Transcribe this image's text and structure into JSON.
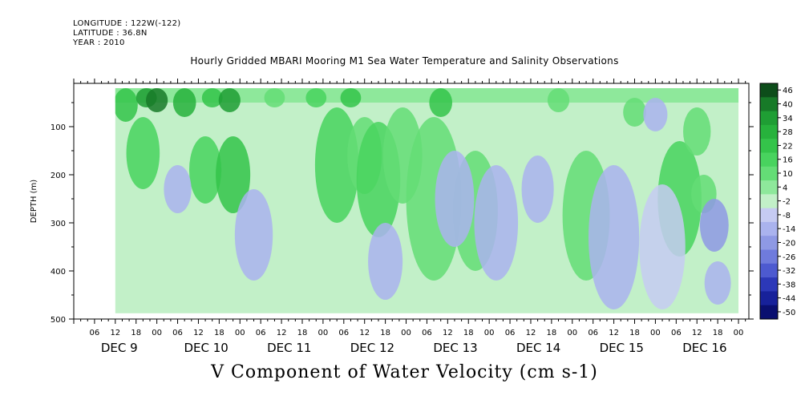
{
  "header": {
    "longitude": "LONGITUDE : 122W(-122)",
    "latitude": "LATITUDE : 36.8N",
    "year": "YEAR : 2010"
  },
  "chart_data": {
    "type": "heatmap",
    "title": "Hourly Gridded MBARI Mooring M1 Sea Water Temperature and Salinity Observations",
    "xlabel": "",
    "ylabel": "DEPTH (m)",
    "bottom_title": "V Component of Water Velocity (cm s-1)",
    "x_range_hours": [
      0,
      195
    ],
    "y_range_m": [
      500,
      10
    ],
    "y_ticks": [
      100,
      200,
      300,
      400,
      500
    ],
    "hour_tick_labels": [
      "06",
      "12",
      "18",
      "00",
      "06",
      "12",
      "18",
      "00",
      "06",
      "12",
      "18",
      "00",
      "06",
      "12",
      "18",
      "00",
      "06",
      "12",
      "18",
      "00",
      "06",
      "12",
      "18",
      "00",
      "06",
      "12",
      "18",
      "00",
      "06",
      "12",
      "18",
      "00"
    ],
    "day_labels": [
      "DEC  9",
      "DEC 10",
      "DEC 11",
      "DEC 12",
      "DEC 13",
      "DEC 14",
      "DEC 15",
      "DEC 16"
    ],
    "colorbar_levels": [
      "46",
      "40",
      "34",
      "28",
      "22",
      "16",
      "10",
      "4",
      "-2",
      "-8",
      "-14",
      "-20",
      "-26",
      "-32",
      "-38",
      "-44",
      "-50"
    ],
    "colorbar_colors": [
      "#0d4d1a",
      "#177a28",
      "#1f9e34",
      "#27b23c",
      "#34c44a",
      "#48d35e",
      "#64dd76",
      "#8ee89b",
      "#c2f0c8",
      "#c6cbf2",
      "#aab3ee",
      "#8e99e4",
      "#6f7bdc",
      "#4d5ad0",
      "#2c38b8",
      "#17219a",
      "#0a0f70"
    ],
    "data_extent_hours": [
      12,
      192
    ],
    "data_extent_depth_m": [
      20,
      488
    ],
    "events": [
      {
        "hour": 15,
        "depth_top": 20,
        "depth_bottom": 90,
        "value": 22
      },
      {
        "hour": 21,
        "depth_top": 20,
        "depth_bottom": 60,
        "value": 34
      },
      {
        "hour": 24,
        "depth_top": 20,
        "depth_bottom": 70,
        "value": 40
      },
      {
        "hour": 32,
        "depth_top": 20,
        "depth_bottom": 80,
        "value": 28
      },
      {
        "hour": 40,
        "depth_top": 20,
        "depth_bottom": 60,
        "value": 22
      },
      {
        "hour": 45,
        "depth_top": 20,
        "depth_bottom": 70,
        "value": 34
      },
      {
        "hour": 20,
        "depth_top": 80,
        "depth_bottom": 230,
        "value": 16
      },
      {
        "hour": 38,
        "depth_top": 120,
        "depth_bottom": 260,
        "value": 16
      },
      {
        "hour": 46,
        "depth_top": 120,
        "depth_bottom": 280,
        "value": 22
      },
      {
        "hour": 58,
        "depth_top": 20,
        "depth_bottom": 60,
        "value": 10
      },
      {
        "hour": 70,
        "depth_top": 20,
        "depth_bottom": 60,
        "value": 16
      },
      {
        "hour": 80,
        "depth_top": 20,
        "depth_bottom": 60,
        "value": 22
      },
      {
        "hour": 76,
        "depth_top": 60,
        "depth_bottom": 300,
        "value": 16
      },
      {
        "hour": 84,
        "depth_top": 80,
        "depth_bottom": 240,
        "value": 10
      },
      {
        "hour": 88,
        "depth_top": 90,
        "depth_bottom": 330,
        "value": 16
      },
      {
        "hour": 95,
        "depth_top": 60,
        "depth_bottom": 260,
        "value": 10
      },
      {
        "hour": 106,
        "depth_top": 20,
        "depth_bottom": 80,
        "value": 22
      },
      {
        "hour": 104,
        "depth_top": 80,
        "depth_bottom": 420,
        "value": 10
      },
      {
        "hour": 116,
        "depth_top": 150,
        "depth_bottom": 400,
        "value": 10
      },
      {
        "hour": 140,
        "depth_top": 20,
        "depth_bottom": 70,
        "value": 10
      },
      {
        "hour": 148,
        "depth_top": 150,
        "depth_bottom": 420,
        "value": 10
      },
      {
        "hour": 162,
        "depth_top": 40,
        "depth_bottom": 100,
        "value": 10
      },
      {
        "hour": 175,
        "depth_top": 130,
        "depth_bottom": 370,
        "value": 16
      },
      {
        "hour": 180,
        "depth_top": 60,
        "depth_bottom": 160,
        "value": 10
      },
      {
        "hour": 182,
        "depth_top": 200,
        "depth_bottom": 280,
        "value": 10
      },
      {
        "hour": 30,
        "depth_top": 180,
        "depth_bottom": 280,
        "value": -14
      },
      {
        "hour": 52,
        "depth_top": 230,
        "depth_bottom": 420,
        "value": -14
      },
      {
        "hour": 90,
        "depth_top": 300,
        "depth_bottom": 460,
        "value": -14
      },
      {
        "hour": 110,
        "depth_top": 150,
        "depth_bottom": 350,
        "value": -14
      },
      {
        "hour": 122,
        "depth_top": 180,
        "depth_bottom": 420,
        "value": -14
      },
      {
        "hour": 134,
        "depth_top": 160,
        "depth_bottom": 300,
        "value": -14
      },
      {
        "hour": 156,
        "depth_top": 180,
        "depth_bottom": 480,
        "value": -14
      },
      {
        "hour": 168,
        "depth_top": 40,
        "depth_bottom": 110,
        "value": -14
      },
      {
        "hour": 185,
        "depth_top": 250,
        "depth_bottom": 360,
        "value": -20
      },
      {
        "hour": 186,
        "depth_top": 380,
        "depth_bottom": 470,
        "value": -14
      },
      {
        "hour": 170,
        "depth_top": 220,
        "depth_bottom": 480,
        "value": -8
      }
    ]
  }
}
